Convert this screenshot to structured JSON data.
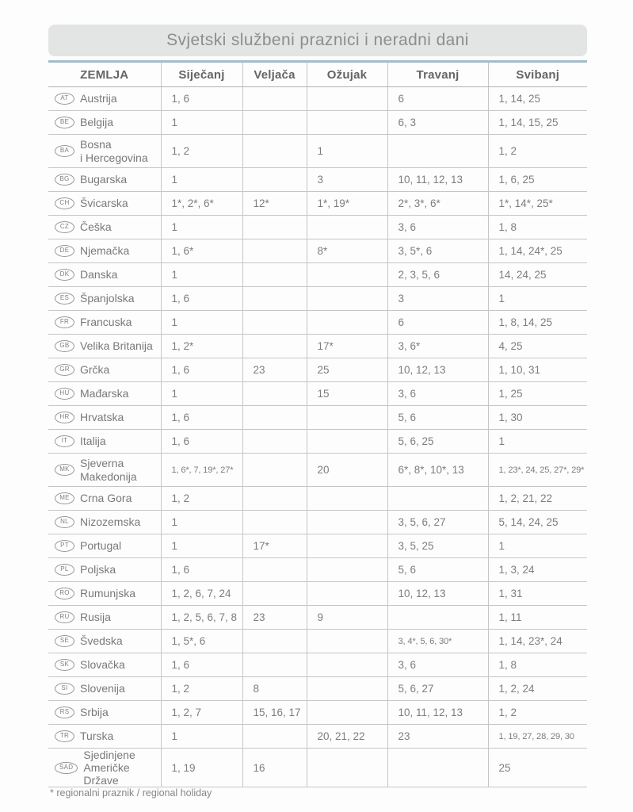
{
  "title": "Svjetski službeni praznici i neradni dani",
  "footnote": "* regionalni praznik / regional holiday",
  "colors": {
    "accent_line": "#a2bcc9",
    "title_bg": "#e3e4e4",
    "table_border": "#c5c6c7",
    "text": "#7b7d7f"
  },
  "table": {
    "columns": [
      "ZEMLJA",
      "Siječanj",
      "Veljača",
      "Ožujak",
      "Travanj",
      "Svibanj"
    ],
    "rows": [
      {
        "code": "AT",
        "country": "Austrija",
        "values": [
          "1, 6",
          "",
          "",
          "6",
          "1, 14, 25"
        ]
      },
      {
        "code": "BE",
        "country": "Belgija",
        "values": [
          "1",
          "",
          "",
          "6, 3",
          "1, 14, 15, 25"
        ]
      },
      {
        "code": "BA",
        "country": "Bosna\ni Hercegovina",
        "values": [
          "1, 2",
          "",
          "1",
          "",
          "1, 2"
        ]
      },
      {
        "code": "BG",
        "country": "Bugarska",
        "values": [
          "1",
          "",
          "3",
          "10, 11, 12, 13",
          "1, 6, 25"
        ]
      },
      {
        "code": "CH",
        "country": "Švicarska",
        "values": [
          "1*, 2*, 6*",
          "12*",
          "1*, 19*",
          "2*, 3*, 6*",
          "1*, 14*, 25*"
        ]
      },
      {
        "code": "CZ",
        "country": "Češka",
        "values": [
          "1",
          "",
          "",
          "3, 6",
          "1, 8"
        ]
      },
      {
        "code": "DE",
        "country": "Njemačka",
        "values": [
          "1, 6*",
          "",
          "8*",
          "3, 5*, 6",
          "1, 14, 24*, 25"
        ]
      },
      {
        "code": "DK",
        "country": "Danska",
        "values": [
          "1",
          "",
          "",
          "2, 3, 5, 6",
          "14, 24, 25"
        ]
      },
      {
        "code": "ES",
        "country": "Španjolska",
        "values": [
          "1, 6",
          "",
          "",
          "3",
          "1"
        ]
      },
      {
        "code": "FR",
        "country": "Francuska",
        "values": [
          "1",
          "",
          "",
          "6",
          "1, 8, 14, 25"
        ]
      },
      {
        "code": "GB",
        "country": "Velika Britanija",
        "values": [
          "1, 2*",
          "",
          "17*",
          "3, 6*",
          "4, 25"
        ]
      },
      {
        "code": "GR",
        "country": "Grčka",
        "values": [
          "1, 6",
          "23",
          "25",
          "10, 12, 13",
          "1, 10, 31"
        ]
      },
      {
        "code": "HU",
        "country": "Mađarska",
        "values": [
          "1",
          "",
          "15",
          "3, 6",
          "1, 25"
        ]
      },
      {
        "code": "HR",
        "country": "Hrvatska",
        "values": [
          "1, 6",
          "",
          "",
          "5, 6",
          "1, 30"
        ]
      },
      {
        "code": "IT",
        "country": "Italija",
        "values": [
          "1, 6",
          "",
          "",
          "5, 6, 25",
          "1"
        ]
      },
      {
        "code": "MK",
        "country": "Sjeverna\nMakedonija",
        "values": [
          "1, 6*, 7, 19*, 27*",
          "",
          "20",
          "6*, 8*, 10*, 13",
          "1, 23*, 24, 25, 27*, 29*"
        ]
      },
      {
        "code": "ME",
        "country": "Crna Gora",
        "values": [
          "1, 2",
          "",
          "",
          "",
          "1, 2, 21, 22"
        ]
      },
      {
        "code": "NL",
        "country": "Nizozemska",
        "values": [
          "1",
          "",
          "",
          "3, 5, 6, 27",
          "5, 14, 24, 25"
        ]
      },
      {
        "code": "PT",
        "country": "Portugal",
        "values": [
          "1",
          "17*",
          "",
          "3, 5, 25",
          "1"
        ]
      },
      {
        "code": "PL",
        "country": "Poljska",
        "values": [
          "1, 6",
          "",
          "",
          "5, 6",
          "1, 3, 24"
        ]
      },
      {
        "code": "RO",
        "country": "Rumunjska",
        "values": [
          "1, 2, 6, 7, 24",
          "",
          "",
          "10, 12, 13",
          "1, 31"
        ]
      },
      {
        "code": "RU",
        "country": "Rusija",
        "values": [
          "1, 2, 5, 6, 7, 8",
          "23",
          "9",
          "",
          "1, 11"
        ]
      },
      {
        "code": "SE",
        "country": "Švedska",
        "values": [
          "1, 5*, 6",
          "",
          "",
          "3, 4*, 5, 6, 30*",
          "1, 14, 23*, 24"
        ]
      },
      {
        "code": "SK",
        "country": "Slovačka",
        "values": [
          "1, 6",
          "",
          "",
          "3, 6",
          "1, 8"
        ]
      },
      {
        "code": "SI",
        "country": "Slovenija",
        "values": [
          "1, 2",
          "8",
          "",
          "5, 6, 27",
          "1, 2, 24"
        ]
      },
      {
        "code": "RS",
        "country": "Srbija",
        "values": [
          "1, 2, 7",
          "15, 16, 17",
          "",
          "10, 11, 12, 13",
          "1, 2"
        ]
      },
      {
        "code": "TR",
        "country": "Turska",
        "values": [
          "1",
          "",
          "20, 21, 22",
          "23",
          "1, 19, 27, 28, 29, 30"
        ]
      },
      {
        "code": "SAD",
        "country": "Sjedinjene\nAmeričke Države",
        "values": [
          "1, 19",
          "16",
          "",
          "",
          "25"
        ]
      }
    ]
  }
}
